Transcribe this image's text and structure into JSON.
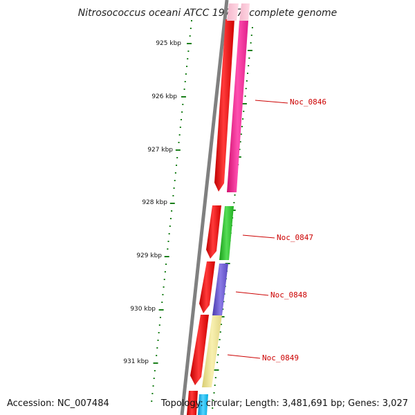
{
  "title": "Nitrosococcus oceani ATCC 19707, complete genome",
  "ticks": [
    "925 kbp",
    "926 kbp",
    "927 kbp",
    "928 kbp",
    "929 kbp",
    "930 kbp",
    "931 kbp"
  ],
  "genes": [
    {
      "label": "Noc_0846",
      "color": "#ff2a9a"
    },
    {
      "label": "Noc_0847",
      "color": "#33cc33"
    },
    {
      "label": "Noc_0848",
      "color": "#6a5acd"
    },
    {
      "label": "Noc_0849",
      "color": "#f0e68c"
    },
    {
      "label": "",
      "color": "#00bfff"
    }
  ],
  "colors": {
    "forward_strand": "#ff0000",
    "axis": "#808080",
    "ticks": "#1a7f1a",
    "label": "#cc0000"
  },
  "footer": {
    "accession": "Accession: NC_007484",
    "summary": "Topology: circular; Length: 3,481,691 bp; Genes: 3,027"
  }
}
